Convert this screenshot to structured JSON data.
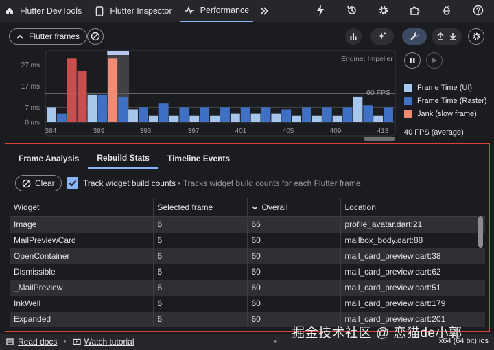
{
  "tabs": [
    {
      "label": "Flutter DevTools",
      "icon": "flutter-devtools-icon"
    },
    {
      "label": "Flutter Inspector",
      "icon": "phone-icon"
    },
    {
      "label": "Performance",
      "icon": "pulse-icon"
    }
  ],
  "controls": {
    "flutter_frames": "Flutter frames"
  },
  "chart_data": {
    "type": "bar",
    "title": "",
    "engine_label": "Engine: Impeller",
    "fps_marker": "60 FPS",
    "y_ticks": [
      "27 ms",
      "17 ms",
      "7 ms",
      "0 ms"
    ],
    "x_ticks": [
      "384",
      "389",
      "393",
      "397",
      "401",
      "405",
      "409",
      "413"
    ],
    "ylim": [
      0,
      33
    ],
    "frames": [
      {
        "ui": 7,
        "raster": 4,
        "jank": false
      },
      {
        "ui": 30,
        "raster": 24,
        "jank": true
      },
      {
        "ui": 13,
        "raster": 13,
        "jank": false
      },
      {
        "ui": 30,
        "raster": 12,
        "jank": true
      },
      {
        "ui": 6,
        "raster": 7,
        "jank": false
      },
      {
        "ui": 3,
        "raster": 9,
        "jank": false
      },
      {
        "ui": 3,
        "raster": 7,
        "jank": false
      },
      {
        "ui": 3,
        "raster": 7,
        "jank": false
      },
      {
        "ui": 3,
        "raster": 7,
        "jank": false
      },
      {
        "ui": 4,
        "raster": 7,
        "jank": false
      },
      {
        "ui": 4,
        "raster": 7,
        "jank": false
      },
      {
        "ui": 4,
        "raster": 6,
        "jank": false
      },
      {
        "ui": 3,
        "raster": 7,
        "jank": false
      },
      {
        "ui": 3,
        "raster": 7,
        "jank": false
      },
      {
        "ui": 3,
        "raster": 7,
        "jank": false
      },
      {
        "ui": 12,
        "raster": 8,
        "jank": false
      },
      {
        "ui": 3,
        "raster": 7,
        "jank": false
      }
    ],
    "selected_frame_index": 3,
    "legend": [
      {
        "label": "Frame Time (UI)",
        "color": "#a7c6ec"
      },
      {
        "label": "Frame Time (Raster)",
        "color": "#3f70c4"
      },
      {
        "label": "Jank (slow frame)",
        "color": "#f28b74"
      }
    ],
    "average": "40 FPS (average)"
  },
  "panel": {
    "tabs": [
      "Frame Analysis",
      "Rebuild Stats",
      "Timeline Events"
    ],
    "active_tab": 1,
    "clear": "Clear",
    "track_label": "Track widget build counts",
    "track_desc": " • Tracks widget build counts for each Flutter frame.",
    "columns": [
      "Widget",
      "Selected frame",
      "Overall",
      "Location"
    ],
    "rows": [
      [
        "Image",
        "6",
        "66",
        "profile_avatar.dart:21"
      ],
      [
        "MailPreviewCard",
        "6",
        "60",
        "mailbox_body.dart:88"
      ],
      [
        "OpenContainer",
        "6",
        "60",
        "mail_card_preview.dart:38"
      ],
      [
        "Dismissible",
        "6",
        "60",
        "mail_card_preview.dart:62"
      ],
      [
        "_MailPreview",
        "6",
        "60",
        "mail_card_preview.dart:51"
      ],
      [
        "InkWell",
        "6",
        "60",
        "mail_card_preview.dart:179"
      ],
      [
        "Expanded",
        "6",
        "60",
        "mail_card_preview.dart:201"
      ]
    ]
  },
  "footer": {
    "read_docs": "Read docs",
    "watch_tutorial": "Watch tutorial",
    "platform": "x64 (64 bit) ios",
    "watermark": "掘金技术社区 @ 恋猫de小郭"
  }
}
